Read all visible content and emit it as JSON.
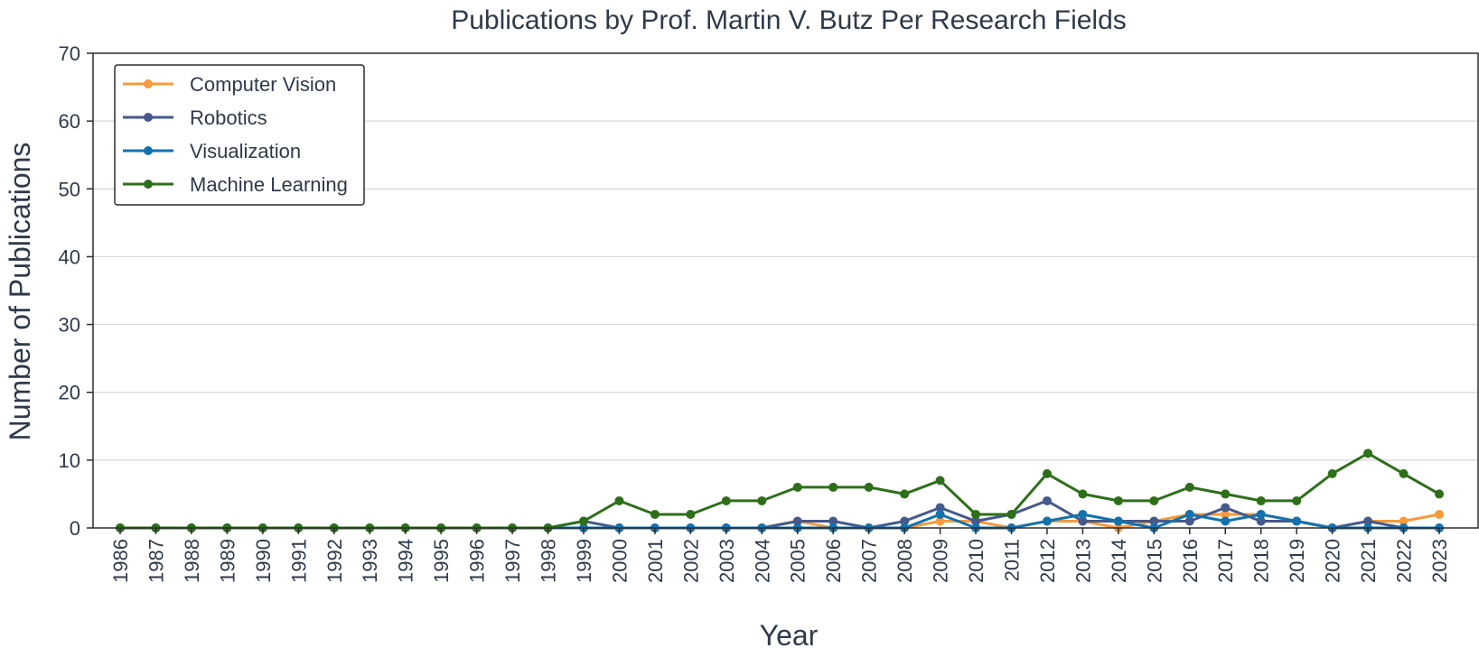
{
  "chart_data": {
    "type": "line",
    "title": "Publications by Prof. Martin V. Butz Per Research Fields",
    "xlabel": "Year",
    "ylabel": "Number of Publications",
    "ylim": [
      0,
      70
    ],
    "yticks": [
      0,
      10,
      20,
      30,
      40,
      50,
      60,
      70
    ],
    "grid": "horizontal",
    "legend_position": "top-left",
    "x": [
      "1986",
      "1987",
      "1988",
      "1989",
      "1990",
      "1991",
      "1992",
      "1993",
      "1994",
      "1995",
      "1996",
      "1997",
      "1998",
      "1999",
      "2000",
      "2001",
      "2002",
      "2003",
      "2004",
      "2005",
      "2006",
      "2007",
      "2008",
      "2009",
      "2010",
      "2011",
      "2012",
      "2013",
      "2014",
      "2015",
      "2016",
      "2017",
      "2018",
      "2019",
      "2020",
      "2021",
      "2022",
      "2023"
    ],
    "series": [
      {
        "name": "Computer Vision",
        "color": "#f79a3c",
        "values": [
          0,
          0,
          0,
          0,
          0,
          0,
          0,
          0,
          0,
          0,
          0,
          0,
          0,
          0,
          0,
          0,
          0,
          0,
          0,
          1,
          0,
          0,
          0,
          1,
          1,
          0,
          1,
          1,
          0,
          1,
          2,
          2,
          2,
          1,
          0,
          1,
          1,
          2
        ]
      },
      {
        "name": "Robotics",
        "color": "#46598c",
        "values": [
          0,
          0,
          0,
          0,
          0,
          0,
          0,
          0,
          0,
          0,
          0,
          0,
          0,
          1,
          0,
          0,
          0,
          0,
          0,
          1,
          1,
          0,
          1,
          3,
          1,
          2,
          4,
          1,
          1,
          1,
          1,
          3,
          1,
          1,
          0,
          1,
          0,
          0
        ]
      },
      {
        "name": "Visualization",
        "color": "#1372ae",
        "values": [
          0,
          0,
          0,
          0,
          0,
          0,
          0,
          0,
          0,
          0,
          0,
          0,
          0,
          0,
          0,
          0,
          0,
          0,
          0,
          0,
          0,
          0,
          0,
          2,
          0,
          0,
          1,
          2,
          1,
          0,
          2,
          1,
          2,
          1,
          0,
          0,
          0,
          0
        ]
      },
      {
        "name": "Machine Learning",
        "color": "#2e6f1a",
        "values": [
          0,
          0,
          0,
          0,
          0,
          0,
          0,
          0,
          0,
          0,
          0,
          0,
          0,
          1,
          4,
          2,
          2,
          4,
          4,
          6,
          6,
          6,
          5,
          7,
          2,
          2,
          8,
          5,
          4,
          4,
          6,
          5,
          4,
          4,
          8,
          11,
          8,
          5
        ]
      }
    ]
  }
}
